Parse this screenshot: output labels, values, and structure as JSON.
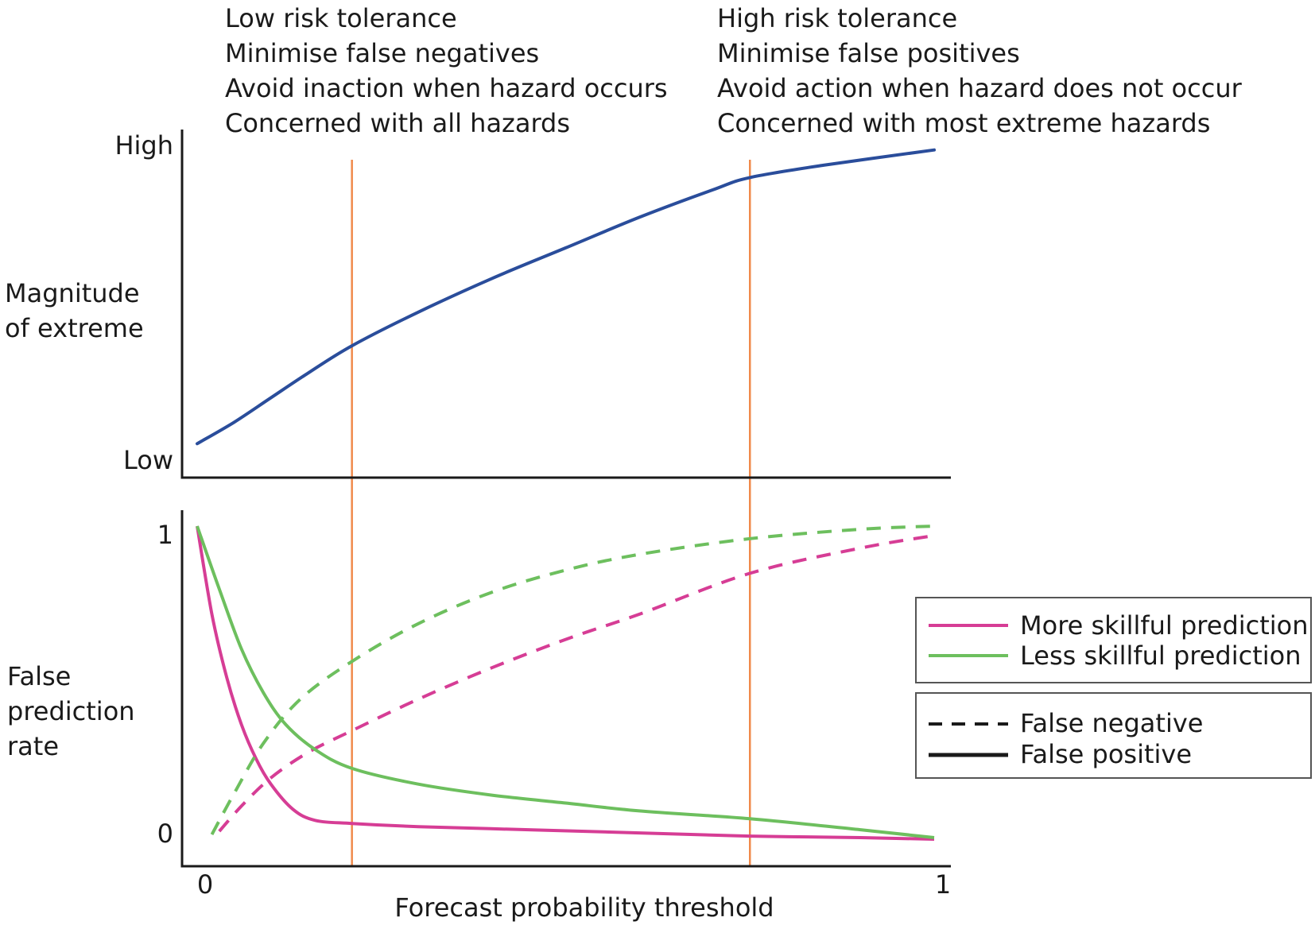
{
  "annotations": {
    "left": [
      "Low risk tolerance",
      "Minimise false negatives",
      "Avoid inaction when hazard occurs",
      "Concerned with all hazards"
    ],
    "right": [
      "High risk tolerance",
      "Minimise false positives",
      "Avoid action when hazard does not occur",
      "Concerned with most extreme hazards"
    ]
  },
  "colors": {
    "magnitude": "#2a4d9b",
    "threshold_lines": "#f08a4b",
    "more_skillful": "#d63d95",
    "less_skillful": "#6dbf5e",
    "axes": "#1a1a1a"
  },
  "chart_data": [
    {
      "type": "line",
      "ylabel": [
        "Magnitude",
        "of extreme"
      ],
      "ytick_labels": {
        "high": "High",
        "low": "Low"
      },
      "xlim": [
        0,
        1
      ],
      "ylim": [
        0,
        1
      ],
      "vertical_lines": [
        0.21,
        0.75
      ],
      "series": [
        {
          "x": [
            0,
            0.05,
            0.1,
            0.15,
            0.21,
            0.3,
            0.4,
            0.5,
            0.6,
            0.7,
            0.75,
            0.85,
            1.0
          ],
          "y": [
            0.02,
            0.09,
            0.17,
            0.25,
            0.34,
            0.45,
            0.56,
            0.66,
            0.76,
            0.85,
            0.89,
            0.93,
            0.98
          ]
        }
      ]
    },
    {
      "type": "line",
      "ylabel": [
        "False",
        "prediction",
        "rate"
      ],
      "xlabel": "Forecast probability threshold",
      "xtick_labels": [
        "0",
        "1"
      ],
      "ytick_labels": [
        "1",
        "0"
      ],
      "xlim": [
        0,
        1
      ],
      "ylim": [
        0,
        1
      ],
      "vertical_lines": [
        0.21,
        0.75
      ],
      "legend": {
        "colors": [
          {
            "name": "More skillful prediction",
            "key": "more_skillful"
          },
          {
            "name": "Less skillful prediction",
            "key": "less_skillful"
          }
        ],
        "styles": [
          {
            "name": "False negative",
            "style": "dashed"
          },
          {
            "name": "False positive",
            "style": "solid"
          }
        ]
      },
      "series": [
        {
          "skill": "more",
          "style": "solid",
          "x": [
            0,
            0.02,
            0.04,
            0.06,
            0.08,
            0.1,
            0.13,
            0.16,
            0.21,
            0.3,
            0.45,
            0.6,
            0.75,
            0.9,
            1.0
          ],
          "y": [
            1.0,
            0.72,
            0.52,
            0.37,
            0.26,
            0.18,
            0.1,
            0.065,
            0.055,
            0.045,
            0.035,
            0.025,
            0.015,
            0.01,
            0.005
          ]
        },
        {
          "skill": "more",
          "style": "dashed",
          "x": [
            0.03,
            0.06,
            0.1,
            0.15,
            0.21,
            0.3,
            0.4,
            0.5,
            0.6,
            0.75,
            0.9,
            1.0
          ],
          "y": [
            0.03,
            0.11,
            0.2,
            0.28,
            0.35,
            0.45,
            0.55,
            0.64,
            0.72,
            0.85,
            0.93,
            0.97
          ]
        },
        {
          "skill": "less",
          "style": "solid",
          "x": [
            0,
            0.03,
            0.06,
            0.09,
            0.12,
            0.16,
            0.21,
            0.3,
            0.4,
            0.5,
            0.6,
            0.75,
            0.9,
            1.0
          ],
          "y": [
            1.0,
            0.8,
            0.61,
            0.47,
            0.37,
            0.29,
            0.23,
            0.18,
            0.145,
            0.12,
            0.095,
            0.07,
            0.035,
            0.01
          ]
        },
        {
          "skill": "less",
          "style": "dashed",
          "x": [
            0.02,
            0.05,
            0.09,
            0.14,
            0.21,
            0.3,
            0.4,
            0.5,
            0.6,
            0.75,
            0.9,
            1.0
          ],
          "y": [
            0.02,
            0.15,
            0.31,
            0.45,
            0.57,
            0.69,
            0.79,
            0.86,
            0.91,
            0.96,
            0.99,
            1.0
          ]
        }
      ]
    }
  ]
}
